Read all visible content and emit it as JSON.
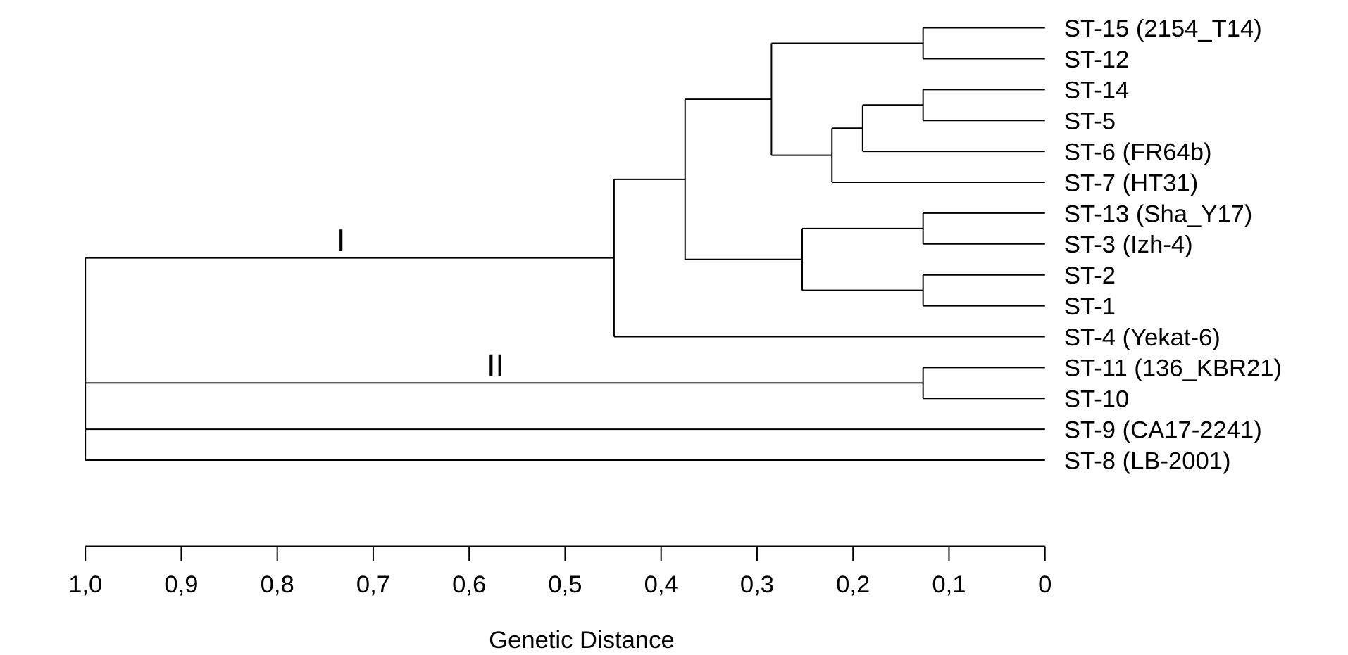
{
  "chart_data": {
    "type": "dendrogram",
    "xlabel": "Genetic Distance",
    "xlim": [
      1.0,
      0
    ],
    "ticks": [
      "1,0",
      "0,9",
      "0,8",
      "0,7",
      "0,6",
      "0,5",
      "0,4",
      "0,3",
      "0,2",
      "0,1",
      "0"
    ],
    "tick_values": [
      1.0,
      0.9,
      0.8,
      0.7,
      0.6,
      0.5,
      0.4,
      0.3,
      0.2,
      0.1,
      0
    ],
    "line_color": "#000000",
    "tree": {
      "height": 1.0,
      "children": [
        {
          "height": 0.449,
          "label": "I",
          "children": [
            {
              "height": 0.375,
              "children": [
                {
                  "height": 0.285,
                  "children": [
                    {
                      "height": 0.127,
                      "children": [
                        {
                          "leaf": "ST-15 (2154_T14)"
                        },
                        {
                          "leaf": "ST-12"
                        }
                      ]
                    },
                    {
                      "height": 0.222,
                      "children": [
                        {
                          "height": 0.19,
                          "children": [
                            {
                              "height": 0.127,
                              "children": [
                                {
                                  "leaf": "ST-14"
                                },
                                {
                                  "leaf": "ST-5"
                                }
                              ]
                            },
                            {
                              "leaf": "ST-6 (FR64b)"
                            }
                          ]
                        },
                        {
                          "leaf": "ST-7 (HT31)"
                        }
                      ]
                    }
                  ]
                },
                {
                  "height": 0.253,
                  "children": [
                    {
                      "height": 0.127,
                      "children": [
                        {
                          "leaf": "ST-13 (Sha_Y17)"
                        },
                        {
                          "leaf": "ST-3 (Izh-4)"
                        }
                      ]
                    },
                    {
                      "height": 0.127,
                      "children": [
                        {
                          "leaf": "ST-2"
                        },
                        {
                          "leaf": "ST-1"
                        }
                      ]
                    }
                  ]
                }
              ]
            },
            {
              "leaf": "ST-4 (Yekat-6)"
            }
          ]
        },
        {
          "height": 0.127,
          "label": "II",
          "children": [
            {
              "leaf": "ST-11 (136_KBR21)"
            },
            {
              "leaf": "ST-10"
            }
          ]
        },
        {
          "leaf": "ST-9 (CA17-2241)"
        },
        {
          "leaf": "ST-8 (LB-2001)"
        }
      ]
    }
  }
}
